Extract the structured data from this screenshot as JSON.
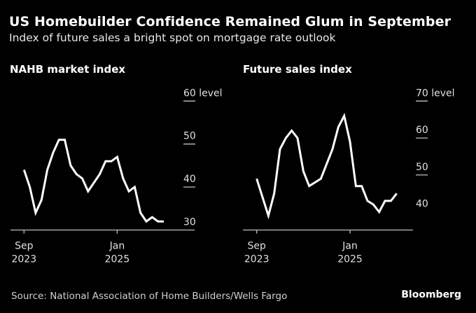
{
  "header": {
    "title": "US Homebuilder Confidence Remained Glum in September",
    "subtitle": "Index of future sales a bright spot on mortgage rate outlook"
  },
  "footer": {
    "source": "Source: National Association of Home Builders/Wells Fargo",
    "brand": "Bloomberg"
  },
  "colors": {
    "background": "#000000",
    "line": "#ffffff",
    "axis": "#bfbfbf",
    "text": "#ffffff"
  },
  "chart_data": [
    {
      "type": "line",
      "title": "NAHB market index",
      "xlabel": "",
      "ylabel": "level",
      "x": [
        "Sep 2023",
        "Oct 2023",
        "Nov 2023",
        "Dec 2023",
        "Jan 2024",
        "Feb 2024",
        "Mar 2024",
        "Apr 2024",
        "May 2024",
        "Jun 2024",
        "Jul 2024",
        "Aug 2024",
        "Sep 2024",
        "Oct 2024",
        "Nov 2024",
        "Dec 2024",
        "Jan 2025",
        "Feb 2025",
        "Mar 2025",
        "Apr 2025",
        "May 2025",
        "Jun 2025",
        "Jul 2025",
        "Aug 2025",
        "Sep 2025"
      ],
      "values": [
        44,
        40,
        34,
        37,
        44,
        48,
        51,
        51,
        45,
        43,
        42,
        39,
        41,
        43,
        46,
        46,
        47,
        42,
        39,
        40,
        34,
        32,
        33,
        32,
        32
      ],
      "ylim": [
        30,
        60
      ],
      "yticks": [
        {
          "value": 30,
          "label": "30"
        },
        {
          "value": 40,
          "label": "40"
        },
        {
          "value": 50,
          "label": "50"
        },
        {
          "value": 60,
          "label": "60 level"
        }
      ],
      "xticks": [
        {
          "index": 0,
          "line1": "Sep",
          "line2": "2023"
        },
        {
          "index": 16,
          "line1": "Jan",
          "line2": "2025"
        }
      ],
      "grid": false,
      "legend": "none"
    },
    {
      "type": "line",
      "title": "Future sales index",
      "xlabel": "",
      "ylabel": "level",
      "x": [
        "Sep 2023",
        "Oct 2023",
        "Nov 2023",
        "Dec 2023",
        "Jan 2024",
        "Feb 2024",
        "Mar 2024",
        "Apr 2024",
        "May 2024",
        "Jun 2024",
        "Jul 2024",
        "Aug 2024",
        "Sep 2024",
        "Oct 2024",
        "Nov 2024",
        "Dec 2024",
        "Jan 2025",
        "Feb 2025",
        "Mar 2025",
        "Apr 2025",
        "May 2025",
        "Jun 2025",
        "Jul 2025",
        "Aug 2025",
        "Sep 2025"
      ],
      "values": [
        49,
        44,
        39,
        45,
        57,
        60,
        62,
        60,
        51,
        47,
        48,
        49,
        53,
        57,
        63,
        66,
        59,
        47,
        47,
        43,
        42,
        40,
        43,
        43,
        45
      ],
      "ylim": [
        35,
        70
      ],
      "yticks": [
        {
          "value": 40,
          "label": "40"
        },
        {
          "value": 50,
          "label": "50"
        },
        {
          "value": 60,
          "label": "60"
        },
        {
          "value": 70,
          "label": "70 level"
        }
      ],
      "xticks": [
        {
          "index": 0,
          "line1": "Sep",
          "line2": "2023"
        },
        {
          "index": 16,
          "line1": "Jan",
          "line2": "2025"
        }
      ],
      "grid": false,
      "legend": "none"
    }
  ]
}
